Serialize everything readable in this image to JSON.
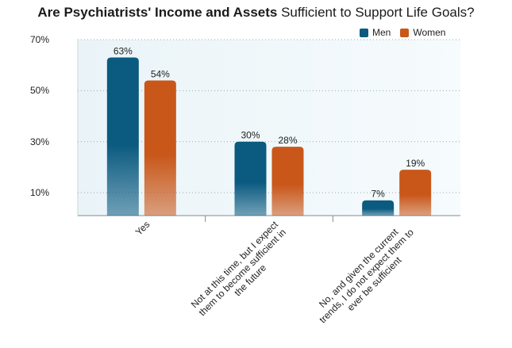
{
  "chart_data": {
    "type": "bar",
    "title_bold": "Are Psychiatrists' Income and Assets",
    "title_rest": " Sufficient to Support Life Goals?",
    "categories": [
      "Yes",
      "Not at this time, but I expect them to become sufficient in the future",
      "No, and given the current trends, I do not expect them to ever be sufficient"
    ],
    "category_lines": [
      [
        "Yes"
      ],
      [
        "Not at this time, but I expect",
        "them to become sufficient in",
        "the future"
      ],
      [
        "No, and given the current",
        "trends, I do not expect them to",
        "ever be sufficient"
      ]
    ],
    "series": [
      {
        "name": "Men",
        "values": [
          63,
          30,
          7
        ],
        "labels": [
          "63%",
          "30%",
          "7%"
        ],
        "color": "#0b5a80"
      },
      {
        "name": "Women",
        "values": [
          54,
          28,
          19
        ],
        "labels": [
          "54%",
          "28%",
          "19%"
        ],
        "color": "#c9571a"
      }
    ],
    "yticks": [
      {
        "value": 10,
        "label": "10%"
      },
      {
        "value": 30,
        "label": "30%"
      },
      {
        "value": 50,
        "label": "50%"
      },
      {
        "value": 70,
        "label": "70%"
      }
    ],
    "ylim": [
      1,
      70
    ],
    "grid": true,
    "legend_position": "top-right"
  }
}
